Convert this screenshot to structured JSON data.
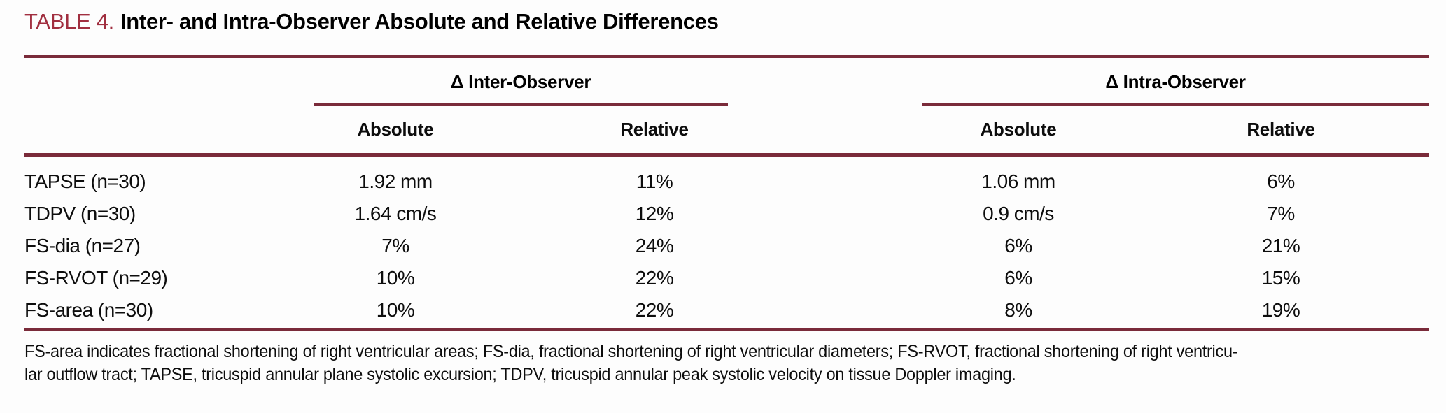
{
  "title": {
    "label": "TABLE 4.",
    "text": "Inter- and Intra-Observer Absolute and Relative Differences"
  },
  "colors": {
    "accent_red": "#a12f40",
    "rule_maroon": "#7a2b3a",
    "text": "#0d0d0d",
    "background": "#fdfdfd"
  },
  "table": {
    "group_headers": {
      "inter": "Δ Inter-Observer",
      "intra": "Δ Intra-Observer"
    },
    "sub_headers": {
      "absolute": "Absolute",
      "relative": "Relative"
    },
    "rows": [
      {
        "label": "TAPSE (n=30)",
        "inter_absolute": "1.92 mm",
        "inter_relative": "11%",
        "intra_absolute": "1.06 mm",
        "intra_relative": "6%"
      },
      {
        "label": "TDPV (n=30)",
        "inter_absolute": "1.64 cm/s",
        "inter_relative": "12%",
        "intra_absolute": "0.9 cm/s",
        "intra_relative": "7%"
      },
      {
        "label": "FS-dia (n=27)",
        "inter_absolute": "7%",
        "inter_relative": "24%",
        "intra_absolute": "6%",
        "intra_relative": "21%"
      },
      {
        "label": "FS-RVOT (n=29)",
        "inter_absolute": "10%",
        "inter_relative": "22%",
        "intra_absolute": "6%",
        "intra_relative": "15%"
      },
      {
        "label": "FS-area (n=30)",
        "inter_absolute": "10%",
        "inter_relative": "22%",
        "intra_absolute": "8%",
        "intra_relative": "19%"
      }
    ]
  },
  "footnote": {
    "line1": "FS-area indicates fractional shortening of right ventricular areas; FS-dia, fractional shortening of right ventricular diameters; FS-RVOT, fractional shortening of right ventricu-",
    "line2": "lar outflow tract; TAPSE, tricuspid annular plane systolic excursion; TDPV, tricuspid annular peak systolic velocity on tissue Doppler imaging."
  }
}
